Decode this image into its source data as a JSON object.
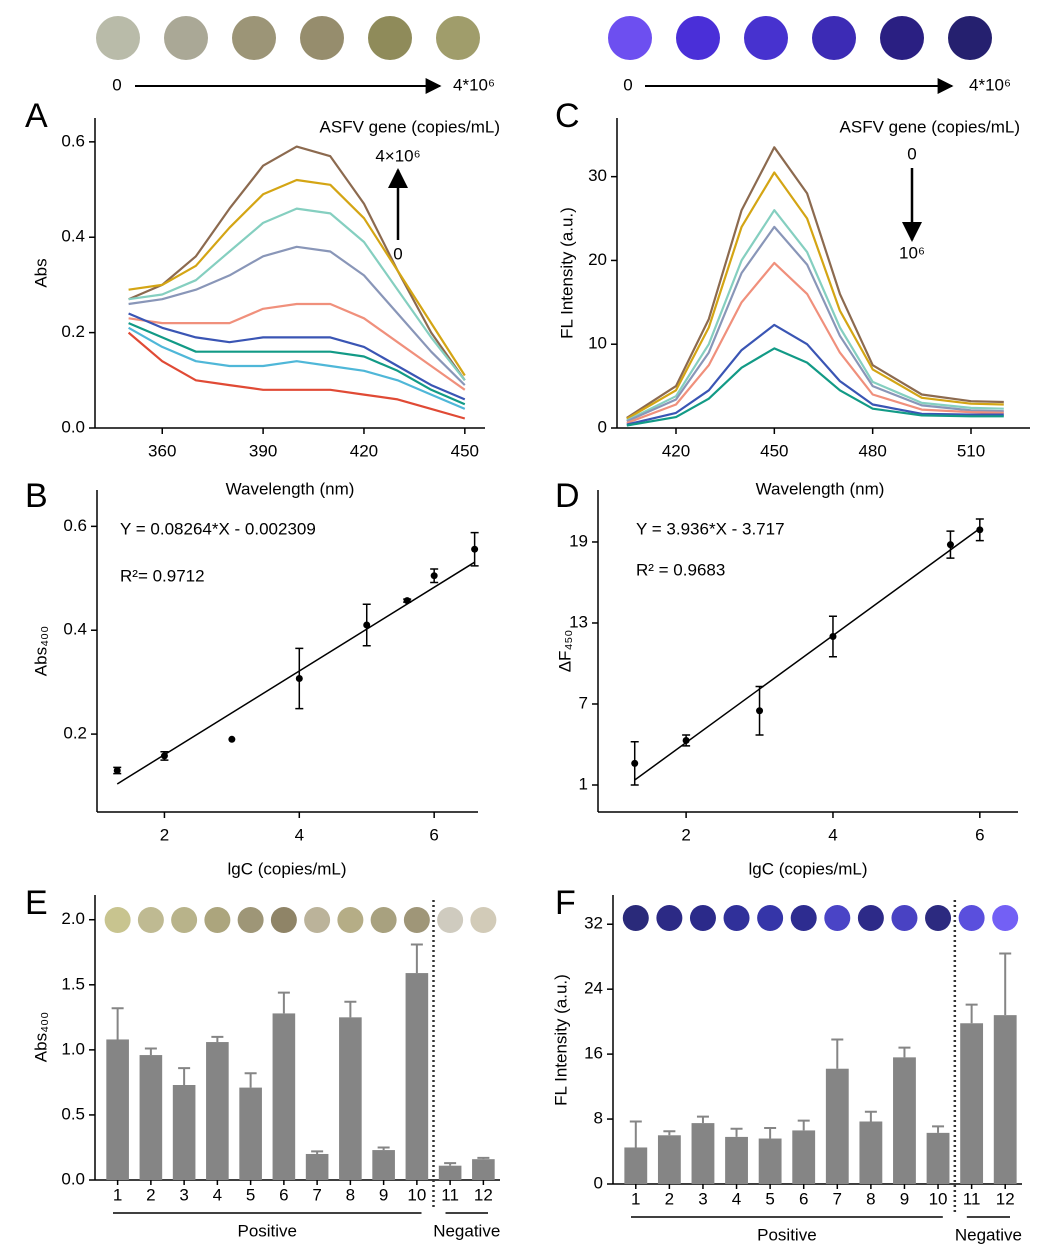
{
  "strips": [
    {
      "colors": [
        "#b9bba9",
        "#aaa896",
        "#9c9577",
        "#968d6d",
        "#8f8b5a",
        "#a09d6b"
      ],
      "start_label": "0",
      "end_label": "4*10⁶"
    },
    {
      "colors": [
        "#6d4ff0",
        "#4a2fd8",
        "#4732cf",
        "#3c2bb5",
        "#2a1f82",
        "#25206f"
      ],
      "start_label": "0",
      "end_label": "4*10⁶"
    }
  ],
  "chart_data": [
    {
      "type": "line",
      "panel": "A",
      "x_label": "Wavelength (nm)",
      "y_label": "Abs",
      "annotations": [
        "ASFV gene (copies/mL)",
        "4×10⁶",
        "0"
      ],
      "x": [
        350,
        360,
        370,
        380,
        390,
        400,
        410,
        420,
        430,
        440,
        450
      ],
      "xlim": [
        340,
        456
      ],
      "xticks": [
        360,
        390,
        420,
        450
      ],
      "ylim": [
        0,
        0.65
      ],
      "yticks": [
        {
          "value": 0,
          "label": "0.0"
        },
        0.2,
        0.4,
        0.6
      ],
      "series": [
        {
          "color": "#8c6a4f",
          "values": [
            0.27,
            0.3,
            0.36,
            0.46,
            0.55,
            0.59,
            0.57,
            0.47,
            0.33,
            0.2,
            0.1
          ]
        },
        {
          "color": "#d4a514",
          "values": [
            0.29,
            0.3,
            0.34,
            0.42,
            0.49,
            0.52,
            0.51,
            0.44,
            0.33,
            0.22,
            0.11
          ]
        },
        {
          "color": "#85cfc0",
          "values": [
            0.27,
            0.28,
            0.31,
            0.37,
            0.43,
            0.46,
            0.45,
            0.39,
            0.29,
            0.19,
            0.1
          ]
        },
        {
          "color": "#8996b8",
          "values": [
            0.26,
            0.27,
            0.29,
            0.32,
            0.36,
            0.38,
            0.37,
            0.32,
            0.24,
            0.16,
            0.09
          ]
        },
        {
          "color": "#f0907c",
          "values": [
            0.23,
            0.22,
            0.22,
            0.22,
            0.25,
            0.26,
            0.26,
            0.23,
            0.18,
            0.13,
            0.08
          ]
        },
        {
          "color": "#3a55b4",
          "values": [
            0.24,
            0.21,
            0.19,
            0.18,
            0.19,
            0.19,
            0.19,
            0.17,
            0.13,
            0.09,
            0.06
          ]
        },
        {
          "color": "#129a86",
          "values": [
            0.22,
            0.19,
            0.16,
            0.16,
            0.16,
            0.16,
            0.16,
            0.15,
            0.12,
            0.08,
            0.05
          ]
        },
        {
          "color": "#4fb7d8",
          "values": [
            0.21,
            0.17,
            0.14,
            0.13,
            0.13,
            0.14,
            0.13,
            0.12,
            0.1,
            0.07,
            0.04
          ]
        },
        {
          "color": "#e04a35",
          "values": [
            0.2,
            0.14,
            0.1,
            0.09,
            0.08,
            0.08,
            0.08,
            0.07,
            0.06,
            0.04,
            0.02
          ]
        }
      ]
    },
    {
      "type": "scatter",
      "panel": "B",
      "x_label": "lgC (copies/mL)",
      "y_label": "Abs₄₀₀",
      "annotations": [
        "Y = 0.08264*X - 0.002309",
        "R²= 0.9712"
      ],
      "x": [
        1.3,
        2,
        3,
        4,
        5,
        5.6,
        6,
        6.6
      ],
      "xlim": [
        1.0,
        6.65
      ],
      "xticks": [
        2,
        4,
        6
      ],
      "ylim": [
        0.05,
        0.67
      ],
      "yticks": [
        0.2,
        0.4,
        0.6
      ],
      "series": [
        {
          "color": "#000000",
          "values": [
            0.13,
            0.158,
            0.19,
            0.307,
            0.41,
            0.457,
            0.505,
            0.556
          ],
          "errors": [
            0.006,
            0.008,
            null,
            0.058,
            0.04,
            0.003,
            0.013,
            0.032
          ]
        }
      ],
      "fit": {
        "x": [
          1.3,
          6.6
        ],
        "y": [
          0.104,
          0.531
        ]
      }
    },
    {
      "type": "line",
      "panel": "C",
      "x_label": "Wavelength (nm)",
      "y_label": "FL Intensity (a.u.)",
      "annotations": [
        "ASFV gene (copies/mL)",
        "0",
        "10⁶"
      ],
      "x": [
        405,
        420,
        430,
        440,
        450,
        460,
        470,
        480,
        495,
        510,
        520
      ],
      "xlim": [
        402,
        528
      ],
      "xticks": [
        420,
        450,
        480,
        510
      ],
      "ylim": [
        0,
        37
      ],
      "yticks": [
        0,
        10,
        20,
        30
      ],
      "series": [
        {
          "color": "#8c6a4f",
          "values": [
            1.2,
            5,
            13,
            26,
            33.5,
            28,
            16,
            7.5,
            4,
            3.2,
            3.1
          ]
        },
        {
          "color": "#d4a514",
          "values": [
            1.1,
            4.5,
            12,
            24,
            30.5,
            25,
            14,
            7,
            3.6,
            2.9,
            2.8
          ]
        },
        {
          "color": "#85cfc0",
          "values": [
            0.9,
            3.8,
            10,
            20,
            26,
            21,
            12,
            5.5,
            3,
            2.4,
            2.3
          ]
        },
        {
          "color": "#8996b8",
          "values": [
            0.8,
            3.4,
            9,
            18.5,
            24,
            19.5,
            11,
            5,
            2.7,
            2.1,
            2.0
          ]
        },
        {
          "color": "#f0907c",
          "values": [
            0.6,
            2.8,
            7.5,
            15,
            19.7,
            16,
            9,
            4,
            2.2,
            1.9,
            1.8
          ]
        },
        {
          "color": "#3a55b4",
          "values": [
            0.4,
            1.8,
            4.5,
            9.3,
            12.3,
            10,
            5.6,
            2.8,
            1.7,
            1.6,
            1.6
          ]
        },
        {
          "color": "#129a86",
          "values": [
            0.3,
            1.3,
            3.5,
            7.2,
            9.5,
            7.8,
            4.5,
            2.3,
            1.5,
            1.4,
            1.4
          ]
        }
      ]
    },
    {
      "type": "scatter",
      "panel": "D",
      "x_label": "lgC (copies/mL)",
      "y_label": "ΔF₄₅₀",
      "annotations": [
        "Y = 3.936*X - 3.717",
        "R² = 0.9683"
      ],
      "x": [
        1.3,
        2,
        3,
        4,
        5.6,
        6
      ],
      "xlim": [
        0.8,
        6.52
      ],
      "xticks": [
        2,
        4,
        6
      ],
      "ylim": [
        -1,
        22.85
      ],
      "yticks": [
        1,
        7,
        13,
        19
      ],
      "series": [
        {
          "color": "#000000",
          "values": [
            2.6,
            4.3,
            6.5,
            12,
            18.8,
            19.9
          ],
          "errors": [
            1.6,
            0.4,
            1.8,
            1.5,
            1,
            0.8
          ]
        }
      ],
      "fit": {
        "x": [
          1.3,
          6
        ],
        "y": [
          1.37,
          20
        ]
      }
    },
    {
      "type": "bar",
      "panel": "E",
      "y_label": "Abs₄₀₀",
      "color": "#858585",
      "categories": [
        "1",
        "2",
        "3",
        "4",
        "5",
        "6",
        "7",
        "8",
        "9",
        "10",
        "11",
        "12"
      ],
      "values": [
        1.08,
        0.96,
        0.73,
        1.06,
        0.71,
        1.28,
        0.2,
        1.25,
        0.23,
        1.59,
        0.11,
        0.16
      ],
      "errors": [
        0.24,
        0.05,
        0.13,
        0.04,
        0.11,
        0.16,
        0.02,
        0.12,
        0.02,
        0.22,
        0.02,
        0.01
      ],
      "dot_colors": [
        "#c8c48f",
        "#bfba92",
        "#b8b38a",
        "#aca57d",
        "#9e9677",
        "#8f8467",
        "#bbb39a",
        "#b5ad86",
        "#a8a17f",
        "#9f9678",
        "#cfcbbf",
        "#d2cbb8"
      ],
      "groups": [
        {
          "label": "Positive",
          "count": 10
        },
        {
          "label": "Negative",
          "count": 2
        }
      ],
      "ylim": [
        0,
        2.19
      ],
      "yticks": [
        {
          "value": 0,
          "label": "0.0"
        },
        0.5,
        {
          "value": 1,
          "label": "1.0"
        },
        1.5,
        {
          "value": 2,
          "label": "2.0"
        }
      ]
    },
    {
      "type": "bar",
      "panel": "F",
      "y_label": "FL Intensity (a.u.)",
      "color": "#858585",
      "categories": [
        "1",
        "2",
        "3",
        "4",
        "5",
        "6",
        "7",
        "8",
        "9",
        "10",
        "11",
        "12"
      ],
      "values": [
        4.5,
        6,
        7.5,
        5.8,
        5.6,
        6.6,
        14.2,
        7.7,
        15.6,
        6.3,
        19.8,
        20.8
      ],
      "errors": [
        3.2,
        0.5,
        0.8,
        1,
        1.3,
        1.2,
        3.6,
        1.2,
        1.2,
        0.8,
        2.3,
        7.6
      ],
      "dot_colors": [
        "#2a2a7a",
        "#2c2a85",
        "#2b2a8a",
        "#30309a",
        "#3535a8",
        "#2d2c90",
        "#4a44c6",
        "#2d2a88",
        "#4942c3",
        "#2c2a80",
        "#5a4fdd",
        "#7360f5"
      ],
      "groups": [
        {
          "label": "Positive",
          "count": 10
        },
        {
          "label": "Negative",
          "count": 2
        }
      ],
      "ylim": [
        0,
        35.6
      ],
      "yticks": [
        0,
        8,
        16,
        24,
        32
      ]
    }
  ]
}
